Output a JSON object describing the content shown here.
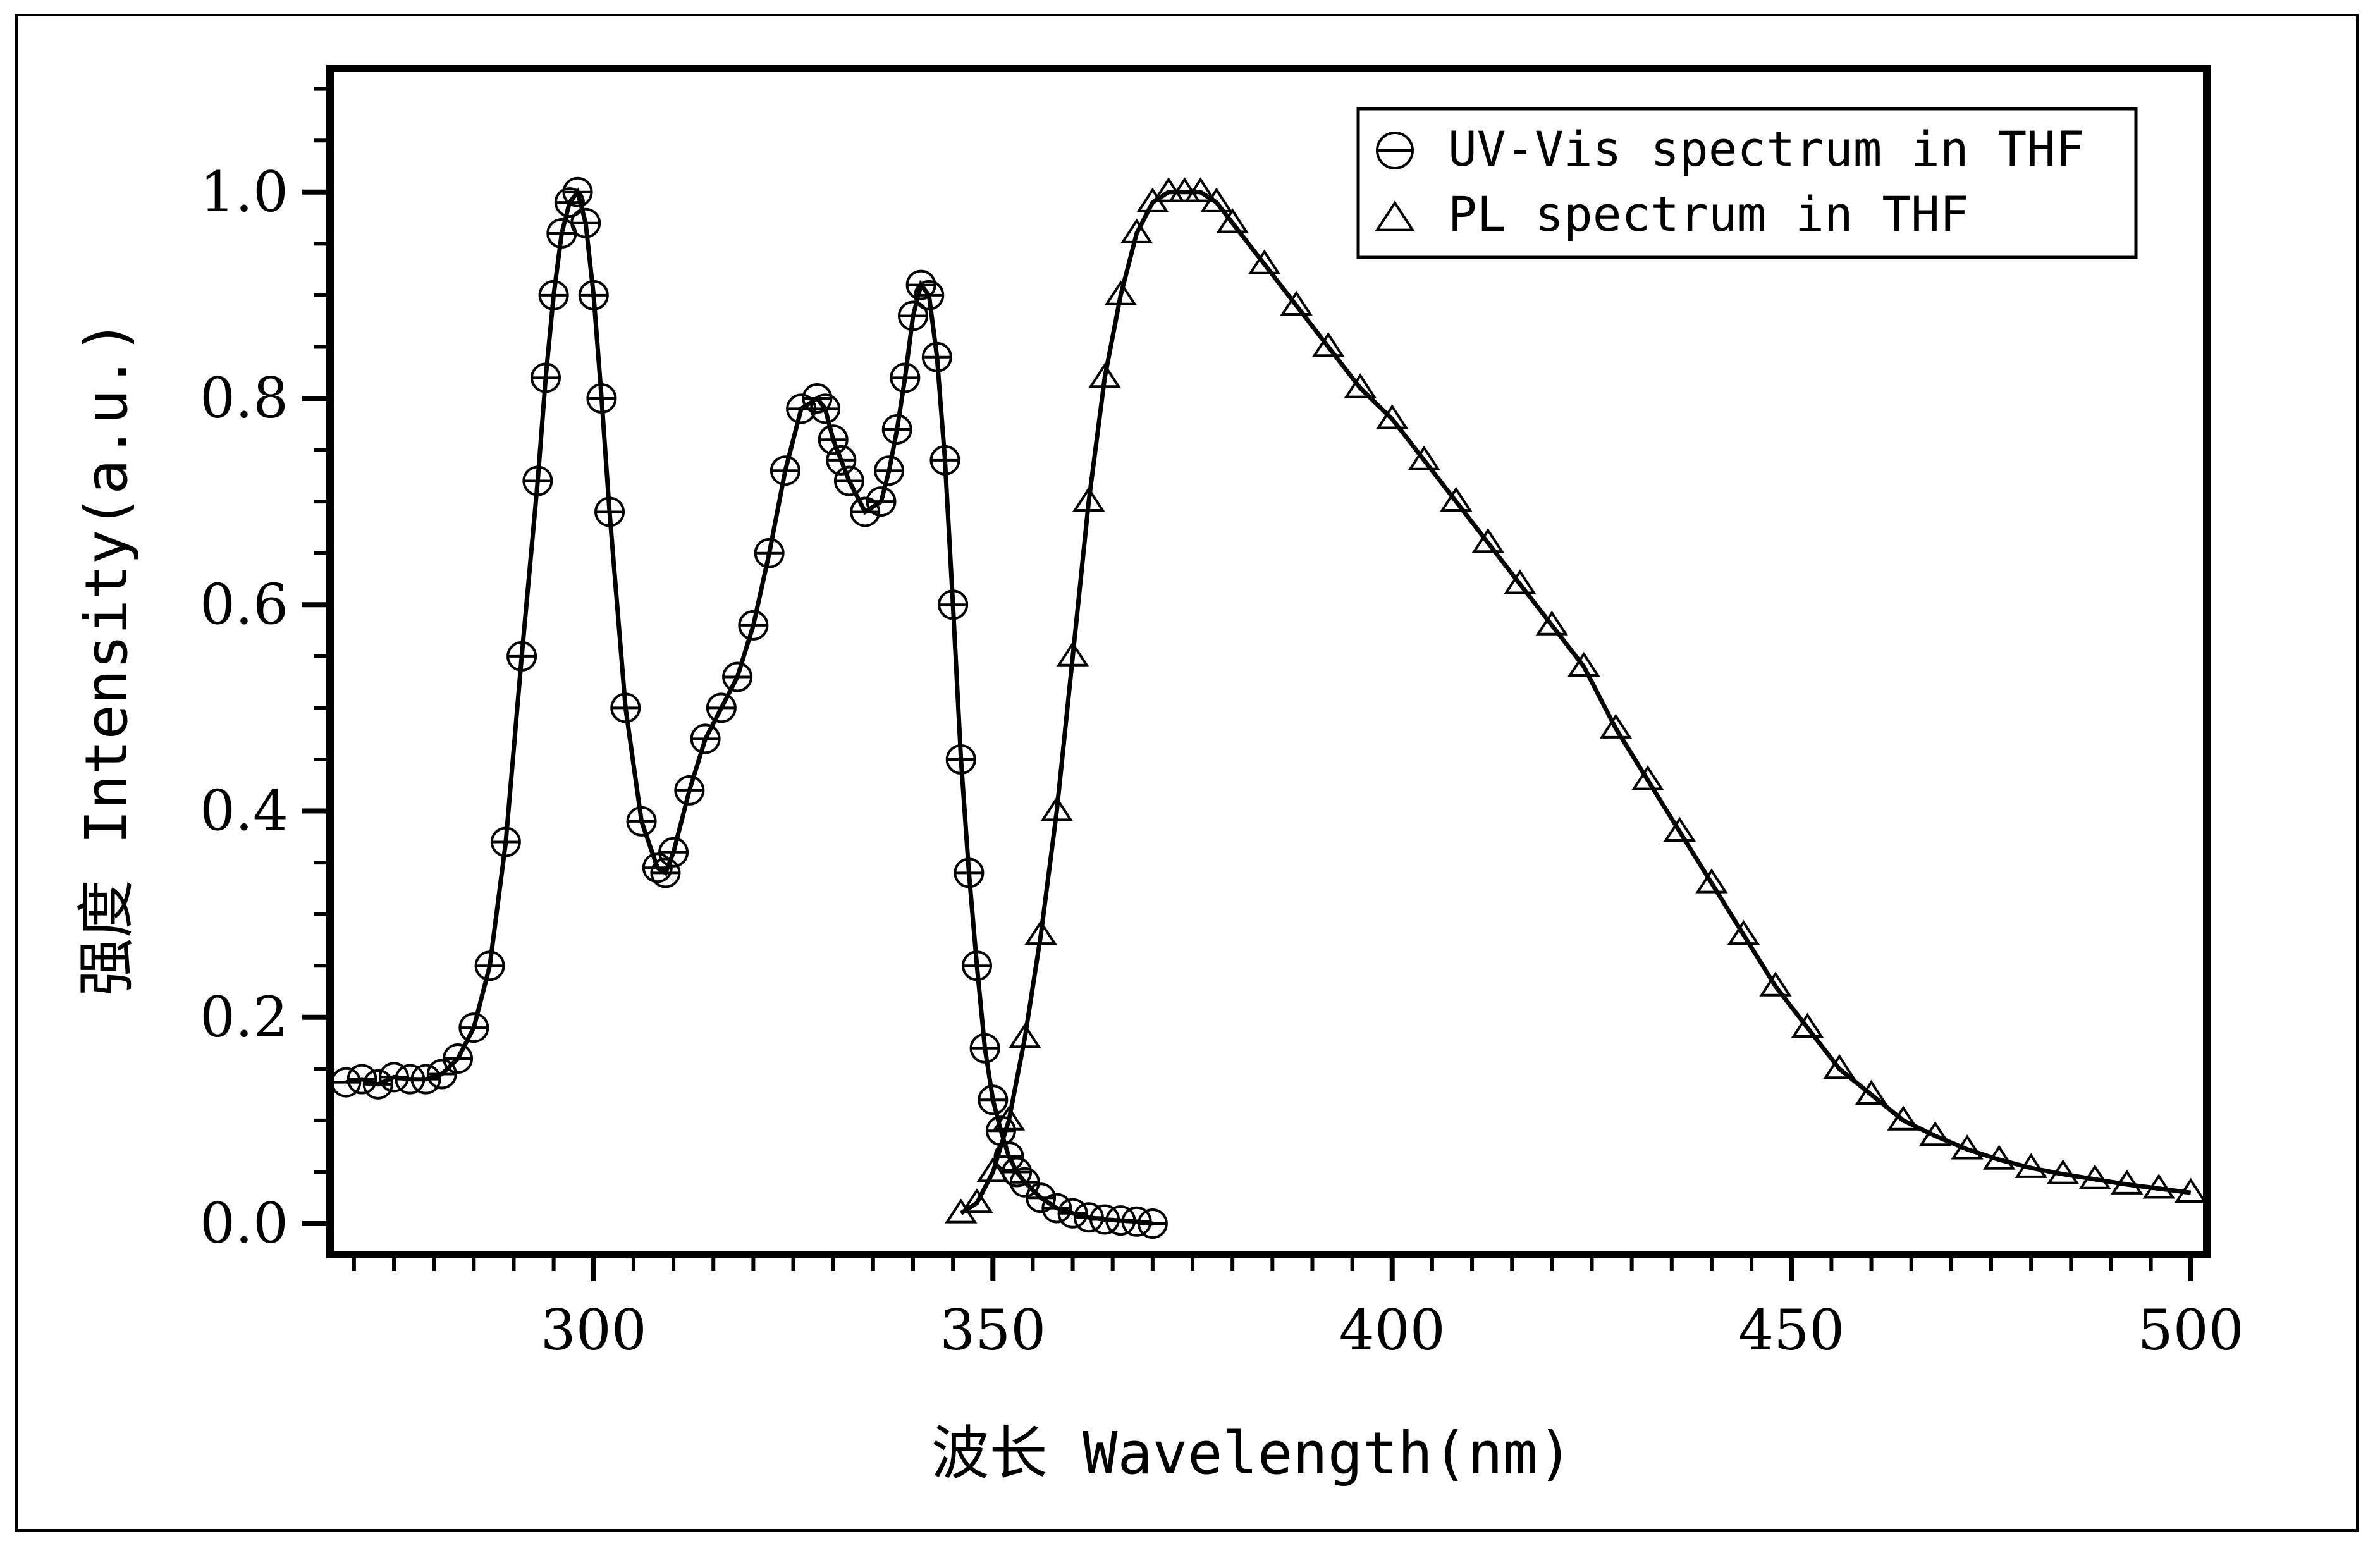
{
  "chart_data": {
    "type": "line",
    "title": "",
    "xlabel": "波长 Wavelength(nm)",
    "ylabel": "强度 Intensity(a.u.)",
    "xlim": [
      267,
      502
    ],
    "ylim": [
      -0.03,
      1.12
    ],
    "xticks": [
      300,
      350,
      400,
      450,
      500
    ],
    "yticks": [
      0.0,
      0.2,
      0.4,
      0.6,
      0.8,
      1.0
    ],
    "xtick_labels": [
      "300",
      "350",
      "400",
      "450",
      "500"
    ],
    "ytick_labels": [
      "0.0",
      "0.2",
      "0.4",
      "0.6",
      "0.8",
      "1.0"
    ],
    "grid": false,
    "legend_position": "top-right",
    "series": [
      {
        "name": "UV-Vis spectrum in THF",
        "marker": "circle-with-bar",
        "x": [
          269,
          271,
          273,
          275,
          277,
          279,
          281,
          283,
          285,
          287,
          289,
          291,
          293,
          294,
          295,
          296,
          297,
          298,
          299,
          300,
          301,
          302,
          304,
          306,
          308,
          309,
          310,
          312,
          314,
          316,
          318,
          320,
          322,
          324,
          326,
          328,
          329,
          330,
          331,
          332,
          334,
          336,
          337,
          338,
          339,
          340,
          341,
          342,
          343,
          344,
          345,
          346,
          347,
          348,
          349,
          350,
          351,
          352,
          353,
          354,
          356,
          358,
          360,
          362,
          364,
          366,
          368,
          370
        ],
        "y": [
          0.137,
          0.14,
          0.135,
          0.142,
          0.14,
          0.14,
          0.145,
          0.16,
          0.19,
          0.25,
          0.37,
          0.55,
          0.72,
          0.82,
          0.9,
          0.96,
          0.99,
          1.0,
          0.97,
          0.9,
          0.8,
          0.69,
          0.5,
          0.39,
          0.345,
          0.34,
          0.36,
          0.42,
          0.47,
          0.5,
          0.53,
          0.58,
          0.65,
          0.73,
          0.79,
          0.8,
          0.79,
          0.76,
          0.74,
          0.72,
          0.69,
          0.7,
          0.73,
          0.77,
          0.82,
          0.88,
          0.91,
          0.9,
          0.84,
          0.74,
          0.6,
          0.45,
          0.34,
          0.25,
          0.17,
          0.12,
          0.09,
          0.065,
          0.05,
          0.04,
          0.025,
          0.015,
          0.01,
          0.006,
          0.004,
          0.003,
          0.002,
          0.0
        ],
        "line_x": [
          269,
          271,
          273,
          275,
          277,
          279,
          281,
          283,
          285,
          287,
          289,
          291,
          293,
          294,
          295,
          296,
          297,
          298,
          299,
          300,
          301,
          302,
          304,
          306,
          308,
          309,
          310,
          312,
          314,
          316,
          318,
          320,
          322,
          324,
          326,
          328,
          329,
          330,
          331,
          332,
          334,
          336,
          337,
          338,
          339,
          340,
          341,
          342,
          343,
          344,
          345,
          346,
          347,
          348,
          349,
          350,
          351,
          352,
          353,
          354,
          356,
          358,
          360,
          362,
          364,
          366,
          368,
          370
        ],
        "line_y": [
          0.137,
          0.14,
          0.135,
          0.142,
          0.14,
          0.14,
          0.145,
          0.16,
          0.19,
          0.25,
          0.37,
          0.55,
          0.72,
          0.82,
          0.9,
          0.96,
          0.99,
          1.0,
          0.97,
          0.9,
          0.8,
          0.69,
          0.5,
          0.39,
          0.345,
          0.34,
          0.36,
          0.42,
          0.47,
          0.5,
          0.53,
          0.58,
          0.65,
          0.73,
          0.79,
          0.8,
          0.79,
          0.76,
          0.74,
          0.72,
          0.69,
          0.7,
          0.73,
          0.77,
          0.82,
          0.88,
          0.91,
          0.9,
          0.84,
          0.74,
          0.6,
          0.45,
          0.34,
          0.25,
          0.17,
          0.12,
          0.09,
          0.065,
          0.05,
          0.04,
          0.025,
          0.015,
          0.01,
          0.006,
          0.004,
          0.003,
          0.002,
          0.0
        ]
      },
      {
        "name": "PL spectrum in THF",
        "marker": "triangle",
        "x": [
          346,
          348,
          350,
          352,
          354,
          356,
          358,
          360,
          362,
          364,
          366,
          368,
          370,
          372,
          374,
          376,
          378,
          380,
          384,
          388,
          392,
          396,
          400,
          404,
          408,
          412,
          416,
          420,
          424,
          428,
          432,
          436,
          440,
          444,
          448,
          452,
          456,
          460,
          464,
          468,
          472,
          476,
          480,
          484,
          488,
          492,
          496,
          500
        ],
        "y": [
          0.01,
          0.02,
          0.05,
          0.1,
          0.18,
          0.28,
          0.4,
          0.55,
          0.7,
          0.82,
          0.9,
          0.96,
          0.99,
          1.0,
          1.0,
          1.0,
          0.99,
          0.97,
          0.93,
          0.89,
          0.85,
          0.81,
          0.78,
          0.74,
          0.7,
          0.66,
          0.62,
          0.58,
          0.54,
          0.48,
          0.43,
          0.38,
          0.33,
          0.28,
          0.23,
          0.19,
          0.15,
          0.125,
          0.1,
          0.085,
          0.072,
          0.062,
          0.054,
          0.048,
          0.043,
          0.038,
          0.034,
          0.03
        ],
        "line_x": [
          346,
          348,
          350,
          352,
          354,
          356,
          358,
          360,
          362,
          364,
          366,
          368,
          370,
          372,
          374,
          376,
          378,
          380,
          384,
          388,
          392,
          396,
          400,
          404,
          408,
          412,
          416,
          420,
          424,
          428,
          432,
          436,
          440,
          444,
          448,
          452,
          456,
          460,
          464,
          468,
          472,
          476,
          480,
          484,
          488,
          492,
          496,
          500
        ],
        "line_y": [
          0.01,
          0.02,
          0.05,
          0.1,
          0.18,
          0.28,
          0.4,
          0.55,
          0.7,
          0.82,
          0.9,
          0.96,
          0.99,
          1.0,
          1.0,
          1.0,
          0.99,
          0.97,
          0.93,
          0.89,
          0.85,
          0.81,
          0.78,
          0.74,
          0.7,
          0.66,
          0.62,
          0.58,
          0.54,
          0.48,
          0.43,
          0.38,
          0.33,
          0.28,
          0.23,
          0.19,
          0.15,
          0.125,
          0.1,
          0.085,
          0.072,
          0.062,
          0.054,
          0.048,
          0.043,
          0.038,
          0.034,
          0.03
        ]
      }
    ]
  },
  "colors": {
    "axis": "#000000",
    "background": "#ffffff",
    "series": "#000000"
  }
}
